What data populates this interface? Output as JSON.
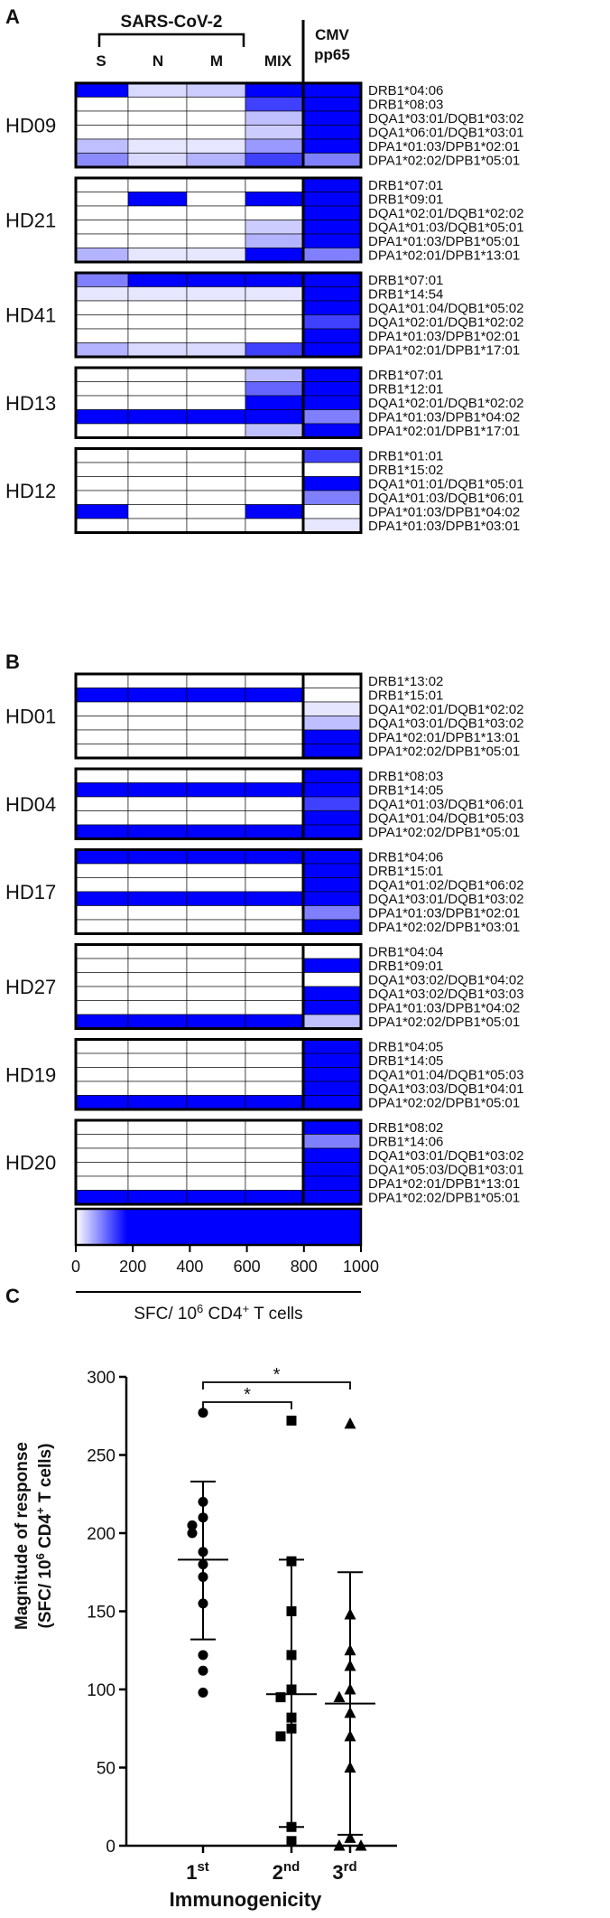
{
  "panels": {
    "a": "A",
    "b": "B",
    "c": "C"
  },
  "heatmap_header": {
    "group": "SARS-CoV-2",
    "columns": [
      "S",
      "N",
      "M",
      "MIX"
    ],
    "cmv_line1": "CMV",
    "cmv_line2": "pp65"
  },
  "colorbar": {
    "ticks": [
      "0",
      "200",
      "400",
      "600",
      "800",
      "1000"
    ],
    "min": 0,
    "max": 1000,
    "label_main": "SFC/ 10",
    "label_exp": "6",
    "label_mid": " CD4",
    "label_sup": "+",
    "label_end": " T cells",
    "color_low": "#ffffff",
    "color_high": "#0000ff"
  },
  "chart_data": [
    {
      "type": "heatmap",
      "panel": "A",
      "columns": [
        "S",
        "N",
        "M",
        "MIX",
        "CMV pp65"
      ],
      "donors": [
        {
          "id": "HD09",
          "alleles": [
            "DRB1*04:06",
            "DRB1*08:03",
            "DQA1*03:01/DQB1*03:02",
            "DQA1*06:01/DQB1*03:01",
            "DPA1*01:03/DPB1*02:01",
            "DPA1*02:02/DPB1*05:01"
          ],
          "values": [
            [
              900,
              30,
              40,
              900,
              1000
            ],
            [
              0,
              0,
              0,
              150,
              1000
            ],
            [
              0,
              0,
              0,
              50,
              800
            ],
            [
              0,
              0,
              0,
              40,
              500
            ],
            [
              50,
              20,
              20,
              80,
              400
            ],
            [
              90,
              30,
              60,
              150,
              100
            ]
          ]
        },
        {
          "id": "HD21",
          "alleles": [
            "DRB1*07:01",
            "DRB1*09:01",
            "DQA1*02:01/DQB1*02:02",
            "DQA1*01:03/DQB1*05:01",
            "DPA1*01:03/DPB1*05:01",
            "DPA1*02:01/DPB1*13:01"
          ],
          "values": [
            [
              0,
              0,
              0,
              0,
              750
            ],
            [
              0,
              950,
              0,
              950,
              900
            ],
            [
              0,
              0,
              0,
              0,
              250
            ],
            [
              0,
              0,
              0,
              40,
              300
            ],
            [
              0,
              0,
              0,
              60,
              300
            ],
            [
              60,
              20,
              20,
              350,
              100
            ]
          ]
        },
        {
          "id": "HD41",
          "alleles": [
            "DRB1*07:01",
            "DRB1*14:54",
            "DQA1*01:04/DQB1*05:02",
            "DQA1*02:01/DQB1*02:02",
            "DPA1*01:03/DPB1*02:01",
            "DPA1*02:01/DPB1*17:01"
          ],
          "values": [
            [
              100,
              350,
              950,
              950,
              300
            ],
            [
              20,
              20,
              20,
              20,
              450
            ],
            [
              0,
              0,
              0,
              0,
              200
            ],
            [
              0,
              0,
              0,
              0,
              150
            ],
            [
              0,
              0,
              0,
              0,
              300
            ],
            [
              60,
              30,
              30,
              150,
              450
            ]
          ]
        },
        {
          "id": "HD13",
          "alleles": [
            "DRB1*07:01",
            "DRB1*12:01",
            "DQA1*02:01/DQB1*02:02",
            "DPA1*01:03/DPB1*04:02",
            "DPA1*02:01/DPB1*17:01"
          ],
          "values": [
            [
              0,
              0,
              0,
              50,
              950
            ],
            [
              0,
              0,
              0,
              120,
              950
            ],
            [
              0,
              0,
              0,
              200,
              300
            ],
            [
              950,
              350,
              350,
              950,
              100
            ],
            [
              0,
              0,
              0,
              50,
              900
            ]
          ]
        },
        {
          "id": "HD12",
          "alleles": [
            "DRB1*01:01",
            "DRB1*15:02",
            "DQA1*01:01/DQB1*05:01",
            "DQA1*01:03/DQB1*06:01",
            "DPA1*01:03/DPB1*04:02",
            "DPA1*01:03/DPB1*03:01"
          ],
          "values": [
            [
              0,
              0,
              0,
              0,
              150
            ],
            [
              0,
              0,
              0,
              0,
              0
            ],
            [
              0,
              0,
              0,
              0,
              350
            ],
            [
              0,
              0,
              0,
              0,
              100
            ],
            [
              950,
              0,
              0,
              950,
              0
            ],
            [
              0,
              0,
              0,
              0,
              20
            ]
          ]
        }
      ]
    },
    {
      "type": "heatmap",
      "panel": "B",
      "columns": [
        "S",
        "N",
        "M",
        "MIX",
        "CMV pp65"
      ],
      "donors": [
        {
          "id": "HD01",
          "alleles": [
            "DRB1*13:02",
            "DRB1*15:01",
            "DQA1*02:01/DQB1*02:02",
            "DQA1*03:01/DQB1*03:02",
            "DPA1*02:01/DPB1*13:01",
            "DPA1*02:02/DPB1*05:01"
          ],
          "values": [
            [
              0,
              0,
              0,
              0,
              0
            ],
            [
              950,
              950,
              950,
              950,
              0
            ],
            [
              0,
              0,
              0,
              0,
              20
            ],
            [
              0,
              0,
              0,
              0,
              50
            ],
            [
              0,
              0,
              0,
              0,
              950
            ],
            [
              0,
              0,
              0,
              0,
              300
            ]
          ]
        },
        {
          "id": "HD04",
          "alleles": [
            "DRB1*08:03",
            "DRB1*14:05",
            "DQA1*01:03/DQB1*06:01",
            "DQA1*01:04/DQB1*05:03",
            "DPA1*02:02/DPB1*05:01"
          ],
          "values": [
            [
              0,
              0,
              0,
              0,
              700
            ],
            [
              650,
              650,
              650,
              650,
              700
            ],
            [
              0,
              0,
              0,
              0,
              150
            ],
            [
              0,
              0,
              0,
              0,
              250
            ],
            [
              250,
              250,
              250,
              250,
              950
            ]
          ]
        },
        {
          "id": "HD17",
          "alleles": [
            "DRB1*04:06",
            "DRB1*15:01",
            "DQA1*01:02/DQB1*06:02",
            "DQA1*03:01/DQB1*03:02",
            "DPA1*01:03/DPB1*02:01",
            "DPA1*02:02/DPB1*03:01"
          ],
          "values": [
            [
              200,
              250,
              250,
              250,
              950
            ],
            [
              0,
              0,
              0,
              0,
              500
            ],
            [
              0,
              0,
              0,
              0,
              400
            ],
            [
              850,
              850,
              850,
              850,
              200
            ],
            [
              0,
              0,
              0,
              0,
              100
            ],
            [
              0,
              0,
              0,
              0,
              200
            ]
          ]
        },
        {
          "id": "HD27",
          "alleles": [
            "DRB1*04:04",
            "DRB1*09:01",
            "DQA1*03:02/DQB1*04:02",
            "DQA1*03:02/DQB1*03:03",
            "DPA1*01:03/DPB1*04:02",
            "DPA1*02:02/DPB1*05:01"
          ],
          "values": [
            [
              0,
              0,
              0,
              0,
              0
            ],
            [
              0,
              0,
              0,
              0,
              200
            ],
            [
              0,
              0,
              0,
              0,
              0
            ],
            [
              0,
              0,
              0,
              0,
              350
            ],
            [
              0,
              0,
              0,
              0,
              400
            ],
            [
              850,
              850,
              850,
              850,
              50
            ]
          ]
        },
        {
          "id": "HD19",
          "alleles": [
            "DRB1*04:05",
            "DRB1*14:05",
            "DQA1*01:04/DQB1*05:03",
            "DQA1*03:03/DQB1*04:01",
            "DPA1*02:02/DPB1*05:01"
          ],
          "values": [
            [
              0,
              0,
              0,
              0,
              700
            ],
            [
              0,
              0,
              0,
              0,
              500
            ],
            [
              0,
              0,
              0,
              0,
              600
            ],
            [
              0,
              0,
              0,
              0,
              650
            ],
            [
              600,
              600,
              600,
              600,
              950
            ]
          ]
        },
        {
          "id": "HD20",
          "alleles": [
            "DRB1*08:02",
            "DRB1*14:06",
            "DQA1*03:01/DQB1*03:02",
            "DQA1*05:03/DQB1*03:01",
            "DPA1*02:01/DPB1*13:01",
            "DPA1*02:02/DPB1*05:01"
          ],
          "values": [
            [
              0,
              0,
              0,
              0,
              300
            ],
            [
              0,
              0,
              0,
              0,
              100
            ],
            [
              0,
              0,
              0,
              0,
              950
            ],
            [
              0,
              0,
              0,
              0,
              350
            ],
            [
              0,
              0,
              0,
              0,
              950
            ],
            [
              600,
              600,
              600,
              600,
              450
            ]
          ]
        }
      ]
    },
    {
      "type": "scatter",
      "panel": "C",
      "categories": [
        "1st",
        "2nd",
        "3rd"
      ],
      "category_labels": [
        {
          "base": "1",
          "sup": "st"
        },
        {
          "base": "2",
          "sup": "nd"
        },
        {
          "base": "3",
          "sup": "rd"
        }
      ],
      "series": [
        {
          "category": "1st",
          "marker": "circle",
          "values": [
            277,
            220,
            210,
            205,
            200,
            188,
            180,
            172,
            155,
            122,
            112,
            98
          ],
          "mean": 183,
          "sd_low": 132,
          "sd_high": 233
        },
        {
          "category": "2nd",
          "marker": "square",
          "values": [
            272,
            182,
            150,
            122,
            100,
            95,
            82,
            75,
            70,
            12,
            3
          ],
          "mean": 97,
          "sd_low": 12,
          "sd_high": 183
        },
        {
          "category": "3rd",
          "marker": "triangle",
          "values": [
            270,
            148,
            125,
            115,
            100,
            95,
            85,
            70,
            50,
            5,
            0,
            0
          ],
          "mean": 91,
          "sd_low": 7,
          "sd_high": 175
        }
      ],
      "ylim": [
        0,
        300
      ],
      "yticks": [
        0,
        50,
        100,
        150,
        200,
        250,
        300
      ],
      "ylabel_line1": "Magnitude of response",
      "ylabel_line2_parts": {
        "a": "(SFC/ 10",
        "b": "6",
        "c": " CD4",
        "d": "+",
        "e": " T cells)"
      },
      "xlabel": "Immunogenicity",
      "significance": [
        {
          "from": "1st",
          "to": "2nd",
          "label": "*"
        },
        {
          "from": "1st",
          "to": "3rd",
          "label": "*"
        }
      ]
    }
  ]
}
